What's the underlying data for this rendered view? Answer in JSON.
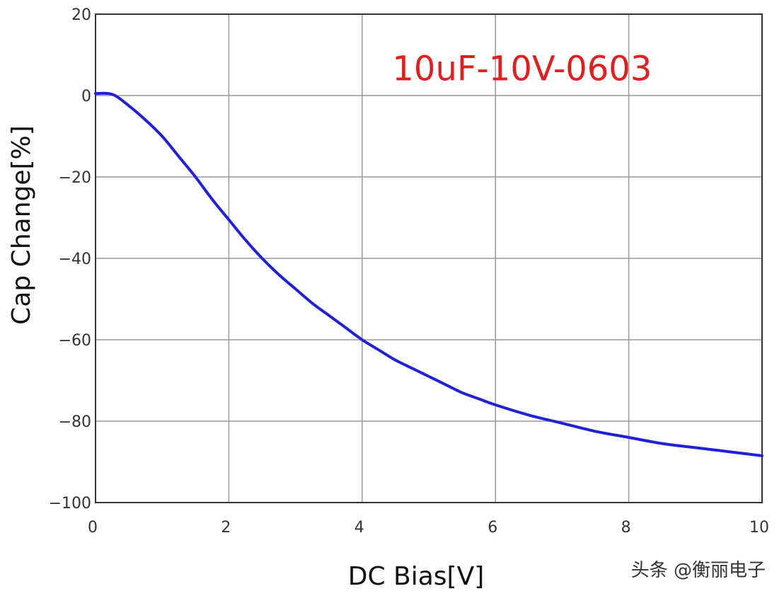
{
  "chart_data": {
    "type": "line",
    "title": "",
    "xlabel": "DC Bias[V]",
    "ylabel": "Cap Change[%]",
    "xlim": [
      0,
      10
    ],
    "ylim": [
      -100,
      20
    ],
    "x_ticks": [
      0,
      2,
      4,
      6,
      8,
      10
    ],
    "y_ticks": [
      20,
      0,
      -20,
      -40,
      -60,
      -80,
      -100
    ],
    "y_tick_labels": [
      "20",
      "0",
      "−20",
      "−40",
      "−60",
      "−80",
      "−100"
    ],
    "grid": true,
    "series": [
      {
        "color": "#2020d8",
        "x": [
          0,
          0.25,
          0.5,
          0.75,
          1.0,
          1.25,
          1.5,
          1.75,
          2.0,
          2.25,
          2.5,
          2.75,
          3.0,
          3.25,
          3.5,
          3.75,
          4.0,
          4.25,
          4.5,
          4.75,
          5.0,
          5.25,
          5.5,
          5.75,
          6.0,
          6.5,
          7.0,
          7.5,
          8.0,
          8.5,
          9.0,
          9.5,
          10.0
        ],
        "values": [
          0.5,
          0.3,
          -2.5,
          -6,
          -10,
          -15,
          -20,
          -25.5,
          -30.5,
          -35.5,
          -40,
          -44,
          -47.5,
          -51,
          -54,
          -57,
          -60,
          -62.5,
          -65,
          -67,
          -69,
          -71,
          -73,
          -74.5,
          -76,
          -78.5,
          -80.5,
          -82.5,
          -84,
          -85.5,
          -86.5,
          -87.5,
          -88.5
        ]
      }
    ],
    "annotations": [
      {
        "text": "10uF-10V-0603",
        "color": "#e02020",
        "x": 6.4,
        "y": 6.5
      }
    ]
  },
  "watermark": {
    "text": "头条 @衡丽电子"
  }
}
